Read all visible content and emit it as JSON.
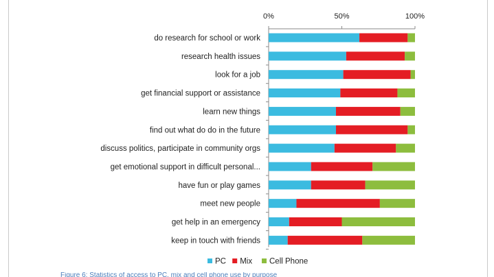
{
  "colors": {
    "pc": "#3bbbe0",
    "mix": "#e41d24",
    "cell_phone": "#8dbd3e",
    "axis": "#8a8a8a",
    "text": "#222222"
  },
  "caption": "Figure 6: Statistics of access to PC, mix and cell phone use by purpose",
  "chart_data": {
    "type": "bar",
    "orientation": "horizontal",
    "stacked": "percent",
    "title": "",
    "xlabel": "",
    "ylabel": "",
    "xlim": [
      0,
      100
    ],
    "x_ticks": [
      "0%",
      "50%",
      "100%"
    ],
    "x_axis_position": "top",
    "legend_position": "bottom",
    "categories": [
      "do research for school or work",
      "research health issues",
      "look for a job",
      "get financial support or assistance",
      "learn new things",
      "find out what do do in the future",
      "discuss politics, participate in community orgs",
      "get emotional support in difficult personal...",
      "have fun or play games",
      "meet new people",
      "get help in an emergency",
      "keep in touch with friends"
    ],
    "series": [
      {
        "name": "PC",
        "color": "#3bbbe0",
        "values": [
          62,
          53,
          51,
          49,
          46,
          46,
          45,
          29,
          29,
          19,
          14,
          13
        ]
      },
      {
        "name": "Mix",
        "color": "#e41d24",
        "values": [
          33,
          40,
          46,
          39,
          44,
          49,
          42,
          42,
          37,
          57,
          36,
          51
        ]
      },
      {
        "name": "Cell Phone",
        "color": "#8dbd3e",
        "values": [
          5,
          7,
          3,
          12,
          10,
          5,
          13,
          29,
          34,
          24,
          50,
          36
        ]
      }
    ]
  }
}
